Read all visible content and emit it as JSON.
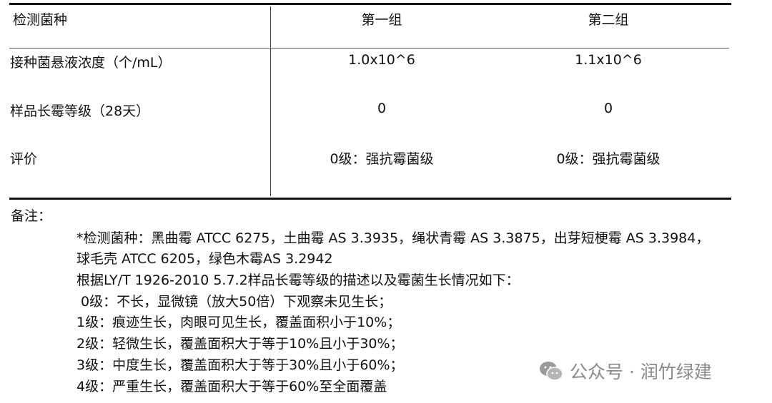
{
  "table": {
    "headers": [
      "检测菌种",
      "第一组",
      "第二组"
    ],
    "rows": [
      {
        "label": "接种菌悬液浓度（个/mL）",
        "group1": "1.0x10^6",
        "group2": "1.1x10^6"
      },
      {
        "label": "样品长霉等级（28天）",
        "group1": "0",
        "group2": "0"
      },
      {
        "label": "评价",
        "group1": "0级：强抗霉菌级",
        "group2": "0级：强抗霉菌级"
      }
    ]
  },
  "notes": {
    "title": "备注：",
    "lines": [
      "*检测菌种：黑曲霉 ATCC 6275，土曲霉 AS 3.3935，绳状青霉 AS 3.3875，出芽短梗霉 AS 3.3984，",
      "球毛壳 ATCC 6205，绿色木霉AS 3.2942",
      "根据LY/T 1926-2010 5.7.2样品长霉等级的描述以及霉菌生长情况如下：",
      " 0级：不长，显微镜（放大50倍）下观察未见生长；",
      "1级：痕迹生长，肉眼可见生长，覆盖面积小于10%；",
      "2级：轻微生长，覆盖面积大于等于10%且小于30%；",
      "3级：中度生长，覆盖面积大于等于30%且小于60%；",
      "4级：严重生长，覆盖面积大于等于60%至全面覆盖"
    ]
  },
  "watermark": {
    "text": "公众号 · 润竹绿建",
    "icon": "wechat-icon"
  }
}
